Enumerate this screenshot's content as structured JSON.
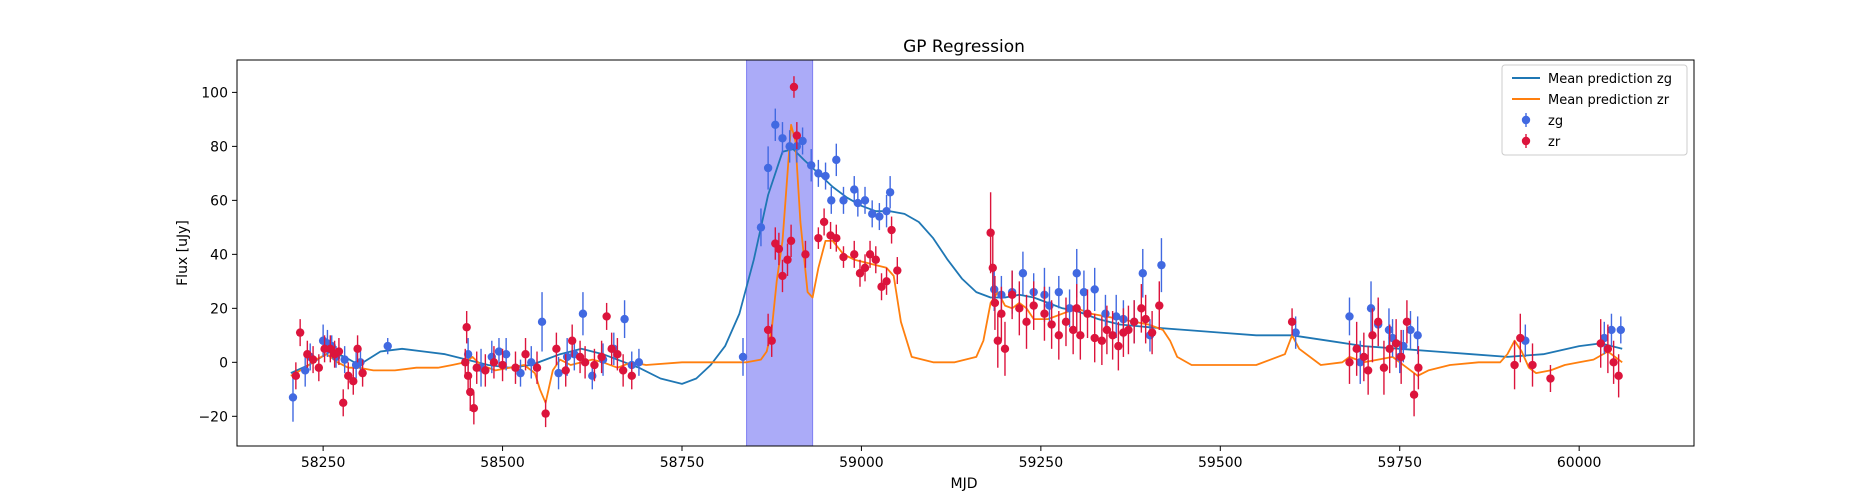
{
  "chart_data": {
    "type": "scatter",
    "title": "GP Regression",
    "xlabel": "MJD",
    "ylabel": "Flux [uJy]",
    "xlim": [
      58130,
      60160
    ],
    "ylim": [
      -31,
      112
    ],
    "xticks": [
      58250,
      58500,
      58750,
      59000,
      59250,
      59500,
      59750,
      60000
    ],
    "yticks": [
      -20,
      0,
      20,
      40,
      60,
      80,
      100
    ],
    "grid": false,
    "legend_position": "top-right",
    "highlight_span": {
      "x0": 58840,
      "x1": 58932,
      "color": "#a6a6f8"
    },
    "legend": [
      {
        "label": "Mean prediction zg",
        "kind": "line",
        "color": "#1f77b4"
      },
      {
        "label": "Mean prediction zr",
        "kind": "line",
        "color": "#ff7f0e"
      },
      {
        "label": "zg",
        "kind": "errorbar",
        "color": "#4169e1"
      },
      {
        "label": "zr",
        "kind": "errorbar",
        "color": "#dc143c"
      }
    ],
    "series": [
      {
        "name": "Mean prediction zg",
        "kind": "line",
        "color": "#1f77b4",
        "x": [
          58205,
          58230,
          58260,
          58280,
          58300,
          58330,
          58360,
          58390,
          58420,
          58450,
          58480,
          58510,
          58540,
          58560,
          58580,
          58610,
          58640,
          58670,
          58690,
          58720,
          58750,
          58770,
          58790,
          58810,
          58830,
          58850,
          58870,
          58890,
          58905,
          58920,
          58940,
          58960,
          58980,
          59000,
          59020,
          59040,
          59060,
          59080,
          59100,
          59120,
          59140,
          59160,
          59180,
          59200,
          59220,
          59240,
          59260,
          59280,
          59300,
          59330,
          59360,
          59400,
          59450,
          59500,
          59550,
          59600,
          59650,
          59700,
          59750,
          59800,
          59850,
          59900,
          59950,
          60000,
          60030,
          60060
        ],
        "y": [
          -4,
          -1,
          4,
          2,
          -1,
          4,
          5,
          4,
          3,
          1,
          -1,
          -2,
          -1,
          1,
          3,
          5,
          3,
          0,
          -2,
          -6,
          -8,
          -6,
          -1,
          6,
          18,
          38,
          62,
          78,
          79,
          75,
          70,
          65,
          61,
          58,
          56,
          56,
          55,
          52,
          46,
          38,
          31,
          26,
          24,
          24,
          25,
          24,
          22,
          20,
          19,
          16,
          14,
          13,
          12,
          11,
          10,
          10,
          8,
          6,
          5,
          4,
          3,
          2,
          3,
          6,
          7,
          5
        ]
      },
      {
        "name": "Mean prediction zr",
        "kind": "line",
        "color": "#ff7f0e",
        "x": [
          58205,
          58225,
          58240,
          58255,
          58270,
          58285,
          58300,
          58320,
          58350,
          58380,
          58410,
          58430,
          58448,
          58458,
          58470,
          58490,
          58510,
          58530,
          58545,
          58552,
          58560,
          58570,
          58580,
          58595,
          58610,
          58625,
          58640,
          58660,
          58680,
          58700,
          58750,
          58800,
          58840,
          58860,
          58868,
          58875,
          58882,
          58890,
          58897,
          58902,
          58908,
          58915,
          58925,
          58932,
          58940,
          58950,
          58960,
          58975,
          58990,
          59005,
          59020,
          59035,
          59045,
          59055,
          59070,
          59100,
          59130,
          59160,
          59170,
          59180,
          59190,
          59200,
          59210,
          59220,
          59230,
          59240,
          59260,
          59280,
          59300,
          59320,
          59340,
          59360,
          59380,
          59400,
          59420,
          59430,
          59440,
          59460,
          59500,
          59550,
          59590,
          59600,
          59610,
          59640,
          59670,
          59680,
          59690,
          59700,
          59720,
          59740,
          59760,
          59775,
          59790,
          59820,
          59860,
          59890,
          59900,
          59910,
          59920,
          59930,
          59940,
          59960,
          59980,
          60000,
          60020,
          60040,
          60060
        ],
        "y": [
          -5,
          -2,
          1,
          3,
          0,
          -2,
          -2,
          -3,
          -3,
          -2,
          -2,
          -1,
          0,
          2,
          -1,
          -3,
          -2,
          -1,
          -4,
          -10,
          -15,
          -3,
          1,
          -1,
          0,
          1,
          0,
          -2,
          0,
          -1,
          0,
          0,
          0,
          1,
          4,
          12,
          30,
          45,
          70,
          88,
          82,
          52,
          26,
          24,
          35,
          45,
          45,
          40,
          38,
          37,
          36,
          35,
          32,
          15,
          2,
          0,
          0,
          2,
          8,
          22,
          26,
          21,
          20,
          22,
          20,
          16,
          16,
          18,
          20,
          18,
          17,
          16,
          15,
          14,
          12,
          8,
          2,
          -1,
          -1,
          -1,
          3,
          10,
          5,
          -1,
          0,
          2,
          1,
          0,
          1,
          2,
          -2,
          -5,
          -3,
          -1,
          0,
          0,
          3,
          8,
          4,
          -2,
          -4,
          -3,
          -1,
          0,
          1,
          4,
          0
        ]
      },
      {
        "name": "zg",
        "kind": "errorbar",
        "color": "#4169e1",
        "x": [
          58208,
          58225,
          58232,
          58250,
          58256,
          58262,
          58268,
          58280,
          58296,
          58302,
          58340,
          58452,
          58470,
          58485,
          58495,
          58505,
          58525,
          58540,
          58555,
          58578,
          58590,
          58600,
          58612,
          58625,
          58640,
          58655,
          58670,
          58680,
          58690,
          58835,
          58860,
          58870,
          58880,
          58890,
          58900,
          58910,
          58918,
          58930,
          58940,
          58950,
          58958,
          58965,
          58975,
          58990,
          58995,
          59005,
          59015,
          59025,
          59035,
          59040,
          59185,
          59195,
          59210,
          59225,
          59240,
          59255,
          59262,
          59275,
          59290,
          59300,
          59310,
          59325,
          59340,
          59355,
          59365,
          59380,
          59392,
          59402,
          59418,
          59605,
          59680,
          59695,
          59710,
          59720,
          59735,
          59740,
          59750,
          59755,
          59765,
          59775,
          59925,
          60035,
          60045,
          60058
        ],
        "y": [
          -13,
          -3,
          2,
          8,
          7,
          6,
          2,
          1,
          -1,
          0,
          6,
          3,
          -2,
          2,
          4,
          3,
          -4,
          0,
          15,
          -4,
          2,
          3,
          18,
          -5,
          1,
          5,
          16,
          -1,
          0,
          2,
          50,
          72,
          88,
          83,
          80,
          80,
          82,
          73,
          70,
          69,
          60,
          75,
          60,
          64,
          59,
          60,
          55,
          54,
          56,
          63,
          27,
          25,
          26,
          33,
          26,
          25,
          21,
          26,
          20,
          33,
          26,
          27,
          18,
          17,
          16,
          15,
          33,
          10,
          36,
          11,
          17,
          0,
          20,
          14,
          12,
          9,
          2,
          6,
          12,
          10,
          8,
          9,
          12,
          12
        ],
        "err": [
          9,
          6,
          5,
          6,
          5,
          4,
          4,
          5,
          5,
          5,
          3,
          6,
          7,
          6,
          5,
          6,
          5,
          6,
          11,
          6,
          7,
          6,
          8,
          5,
          6,
          6,
          7,
          5,
          5,
          7,
          7,
          8,
          6,
          6,
          6,
          6,
          5,
          6,
          5,
          5,
          5,
          6,
          5,
          5,
          5,
          5,
          5,
          5,
          6,
          6,
          8,
          7,
          8,
          8,
          7,
          10,
          7,
          6,
          7,
          9,
          8,
          8,
          7,
          8,
          7,
          8,
          9,
          6,
          10,
          6,
          7,
          8,
          10,
          8,
          8,
          7,
          6,
          6,
          7,
          7,
          6,
          6,
          6,
          5
        ]
      },
      {
        "name": "zr",
        "kind": "errorbar",
        "color": "#dc143c",
        "x": [
          58212,
          58218,
          58228,
          58236,
          58244,
          58252,
          58260,
          58266,
          58272,
          58278,
          58285,
          58292,
          58298,
          58305,
          58448,
          58450,
          58452,
          58455,
          58460,
          58464,
          58476,
          58488,
          58500,
          58518,
          58532,
          58548,
          58560,
          58575,
          58588,
          58597,
          58608,
          58615,
          58628,
          58638,
          58645,
          58652,
          58660,
          58668,
          58680,
          58870,
          58875,
          58880,
          58885,
          58890,
          58897,
          58902,
          58906,
          58910,
          58922,
          58940,
          58948,
          58957,
          58965,
          58975,
          58990,
          58998,
          59005,
          59012,
          59020,
          59028,
          59035,
          59042,
          59050,
          59180,
          59183,
          59186,
          59190,
          59195,
          59200,
          59210,
          59220,
          59230,
          59240,
          59255,
          59265,
          59275,
          59285,
          59295,
          59300,
          59305,
          59315,
          59325,
          59335,
          59342,
          59350,
          59358,
          59365,
          59372,
          59380,
          59390,
          59396,
          59405,
          59415,
          59600,
          59680,
          59690,
          59700,
          59706,
          59712,
          59720,
          59728,
          59736,
          59745,
          59752,
          59760,
          59770,
          59776,
          59910,
          59918,
          59935,
          59960,
          60030,
          60040,
          60048,
          60055
        ],
        "y": [
          -5,
          11,
          3,
          1,
          -2,
          5,
          5,
          3,
          4,
          -15,
          -5,
          -7,
          5,
          -4,
          0,
          13,
          -5,
          -11,
          -17,
          -2,
          -3,
          0,
          -1,
          -2,
          3,
          -2,
          -19,
          5,
          -3,
          8,
          2,
          0,
          -1,
          2,
          17,
          5,
          3,
          -3,
          -5,
          12,
          8,
          44,
          42,
          32,
          38,
          45,
          102,
          84,
          40,
          46,
          52,
          47,
          46,
          39,
          40,
          33,
          35,
          40,
          38,
          28,
          30,
          49,
          34,
          48,
          35,
          22,
          8,
          18,
          5,
          25,
          20,
          15,
          21,
          18,
          14,
          10,
          15,
          12,
          20,
          10,
          18,
          9,
          8,
          12,
          10,
          6,
          11,
          12,
          15,
          20,
          16,
          11,
          21,
          15,
          0,
          5,
          2,
          -3,
          10,
          15,
          -2,
          5,
          7,
          2,
          15,
          -12,
          -2,
          -1,
          9,
          -1,
          -6,
          7,
          5,
          0,
          -5
        ],
        "err": [
          5,
          5,
          5,
          5,
          5,
          5,
          5,
          5,
          5,
          5,
          5,
          5,
          5,
          5,
          5,
          6,
          6,
          7,
          6,
          6,
          6,
          6,
          6,
          6,
          6,
          6,
          5,
          6,
          6,
          6,
          6,
          6,
          6,
          6,
          5,
          6,
          6,
          6,
          5,
          6,
          6,
          6,
          6,
          6,
          6,
          6,
          4,
          5,
          5,
          4,
          5,
          5,
          5,
          4,
          5,
          5,
          5,
          5,
          5,
          5,
          5,
          5,
          5,
          15,
          12,
          10,
          10,
          10,
          10,
          9,
          10,
          10,
          9,
          10,
          9,
          9,
          9,
          9,
          9,
          9,
          9,
          9,
          9,
          9,
          9,
          9,
          9,
          9,
          8,
          9,
          9,
          8,
          9,
          5,
          8,
          10,
          9,
          9,
          10,
          9,
          10,
          9,
          9,
          10,
          8,
          8,
          8,
          9,
          9,
          8,
          5,
          9,
          9,
          8,
          8
        ]
      }
    ]
  }
}
